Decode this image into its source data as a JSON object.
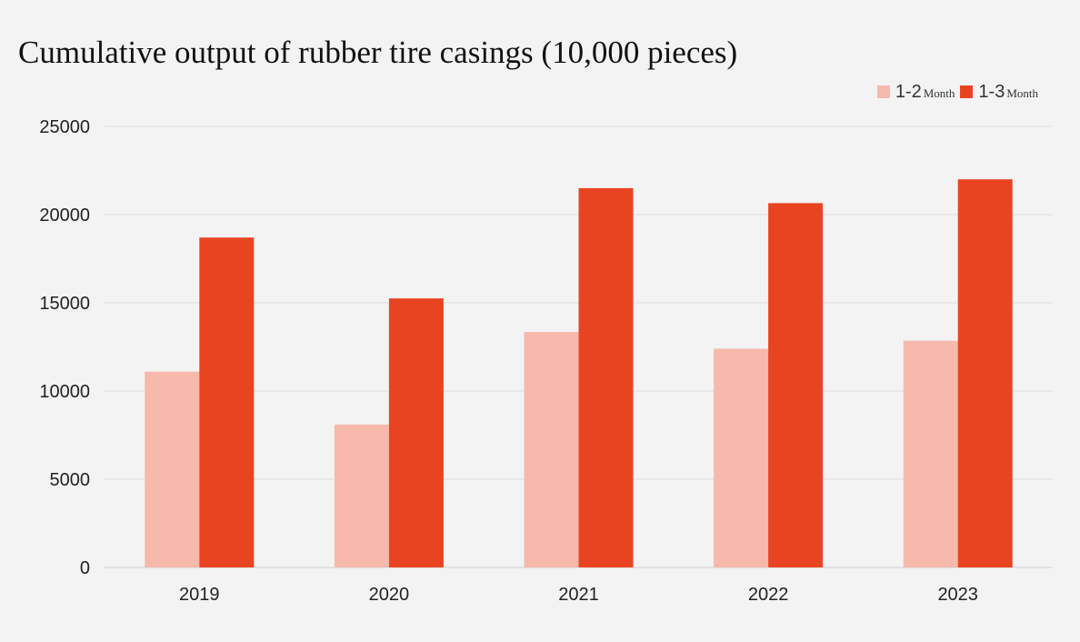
{
  "chart_data": {
    "type": "bar",
    "title": "Cumulative output of rubber tire casings (10,000 pieces)",
    "categories": [
      "2019",
      "2020",
      "2021",
      "2022",
      "2023"
    ],
    "series": [
      {
        "name": "1-2 Month",
        "label_main": "1-2",
        "label_sub": "Month",
        "color": "#f6b9ab",
        "values": [
          11100,
          8100,
          13350,
          12400,
          12850
        ]
      },
      {
        "name": "1-3 Month",
        "label_main": "1-3",
        "label_sub": "Month",
        "color": "#e94421",
        "values": [
          18700,
          15250,
          21500,
          20650,
          22000
        ]
      }
    ],
    "ylim": [
      0,
      25000
    ],
    "yticks": [
      "0",
      "5000",
      "10000",
      "15000",
      "20000",
      "25000"
    ],
    "grid": true,
    "legend_position": "top-right",
    "xlabel": "",
    "ylabel": ""
  }
}
